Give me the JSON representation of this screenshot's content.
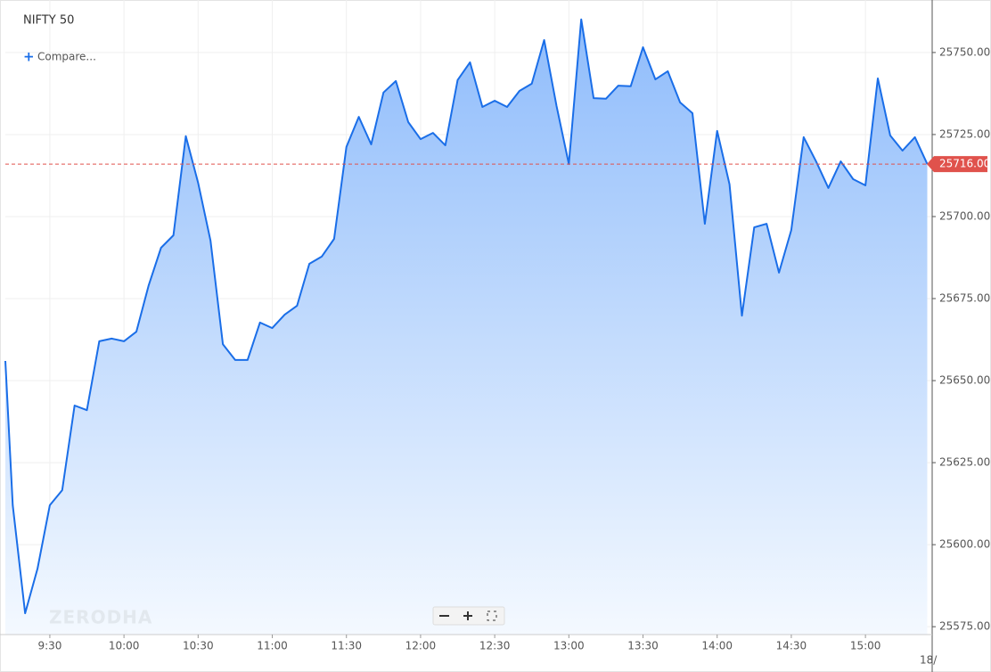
{
  "chart_data": {
    "type": "area",
    "title": "NIFTY 50",
    "compare_label": "Compare...",
    "watermark": "ZERODHA",
    "date_label": "18/",
    "color": "#1a6ee8",
    "fill_top": "#8fbcfb",
    "fill_bottom": "#f4f9ff",
    "grid": true,
    "x": [
      "9:12",
      "9:15",
      "9:20",
      "9:25",
      "9:30",
      "9:35",
      "9:40",
      "9:45",
      "9:50",
      "9:55",
      "10:00",
      "10:05",
      "10:10",
      "10:15",
      "10:20",
      "10:25",
      "10:30",
      "10:35",
      "10:40",
      "10:45",
      "10:50",
      "10:55",
      "11:00",
      "11:05",
      "11:10",
      "11:15",
      "11:20",
      "11:25",
      "11:30",
      "11:35",
      "11:40",
      "11:45",
      "11:50",
      "11:55",
      "12:00",
      "12:05",
      "12:10",
      "12:15",
      "12:20",
      "12:25",
      "12:30",
      "12:35",
      "12:40",
      "12:45",
      "12:50",
      "12:55",
      "13:00",
      "13:05",
      "13:10",
      "13:15",
      "13:20",
      "13:25",
      "13:30",
      "13:35",
      "13:40",
      "13:45",
      "13:50",
      "13:55",
      "14:00",
      "14:05",
      "14:10",
      "14:15",
      "14:20",
      "14:25",
      "14:30",
      "14:35",
      "14:40",
      "14:45",
      "14:50",
      "14:55",
      "15:00",
      "15:05",
      "15:10",
      "15:15",
      "15:20",
      "15:25"
    ],
    "values": [
      25656.0,
      25612.0,
      25579.1,
      25592.7,
      25612.0,
      25616.6,
      25642.4,
      25641.0,
      25662.0,
      25662.8,
      25662.0,
      25664.9,
      25679.1,
      25690.5,
      25694.3,
      25724.5,
      25710.3,
      25692.7,
      25661.1,
      25656.3,
      25656.3,
      25667.7,
      25666.0,
      25670.1,
      25672.8,
      25685.6,
      25687.8,
      25693.2,
      25721.2,
      25730.4,
      25722.0,
      25737.8,
      25741.3,
      25728.8,
      25723.6,
      25725.5,
      25721.7,
      25741.6,
      25747.0,
      25733.4,
      25735.3,
      25733.4,
      25738.3,
      25740.5,
      25753.8,
      25733.7,
      25716.0,
      25760.1,
      25736.1,
      25735.9,
      25739.9,
      25739.7,
      25751.6,
      25741.8,
      25744.3,
      25734.8,
      25731.5,
      25697.8,
      25726.1,
      25709.8,
      25669.8,
      25696.7,
      25697.8,
      25682.9,
      25695.9,
      25724.2,
      25716.8,
      25708.7,
      25716.8,
      25711.4,
      25709.5,
      25742.1,
      25724.7,
      25720.1,
      25724.2,
      25716.0
    ],
    "xlim": [
      "9:12",
      "15:27"
    ],
    "xticks": [
      "9:30",
      "10:00",
      "10:30",
      "11:00",
      "11:30",
      "12:00",
      "12:30",
      "13:00",
      "13:30",
      "14:00",
      "14:30",
      "15:00"
    ],
    "ylim": [
      25572.6,
      25766.0
    ],
    "yticks": [
      {
        "value": 25575,
        "label": "25575.00"
      },
      {
        "value": 25600,
        "label": "25600.00"
      },
      {
        "value": 25625,
        "label": "25625.00"
      },
      {
        "value": 25650,
        "label": "25650.00"
      },
      {
        "value": 25675,
        "label": "25675.00"
      },
      {
        "value": 25700,
        "label": "25700.00"
      },
      {
        "value": 25725,
        "label": "25725.00"
      },
      {
        "value": 25750,
        "label": "25750.00"
      }
    ],
    "last_price": {
      "value": 25716,
      "label": "25716.00"
    },
    "last_price_color": "#e0524c"
  }
}
